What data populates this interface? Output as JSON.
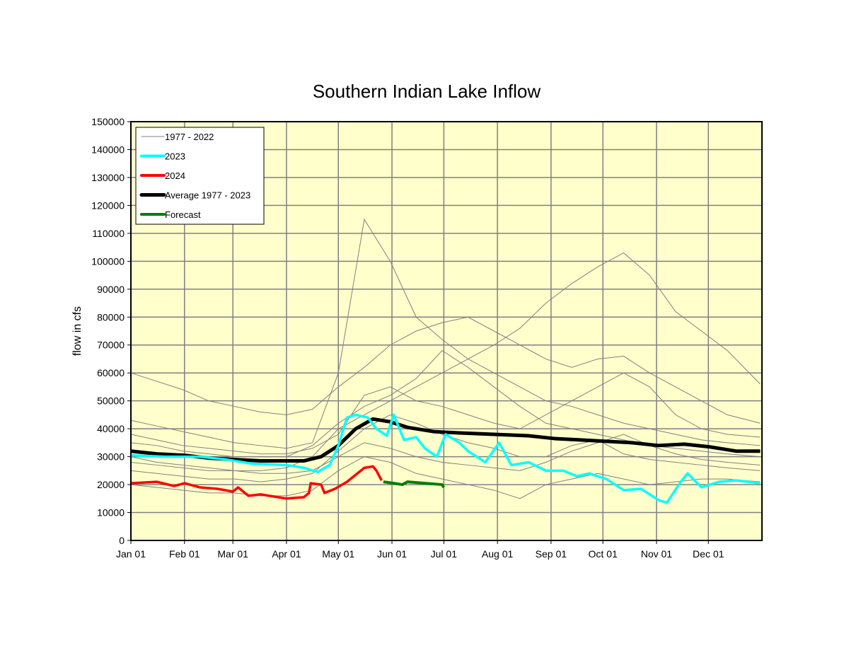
{
  "chart_data": {
    "type": "line",
    "title": "Southern Indian Lake Inflow",
    "xlabel": "",
    "ylabel": "flow in cfs",
    "ylim": [
      0,
      150000
    ],
    "yticks": [
      0,
      10000,
      20000,
      30000,
      40000,
      50000,
      60000,
      70000,
      80000,
      90000,
      100000,
      110000,
      120000,
      130000,
      140000,
      150000
    ],
    "xlim_day_of_year": [
      0,
      365
    ],
    "xticks": [
      {
        "label": "Jan 01",
        "day": 0
      },
      {
        "label": "Feb 01",
        "day": 31
      },
      {
        "label": "Mar 01",
        "day": 59
      },
      {
        "label": "Apr 01",
        "day": 90
      },
      {
        "label": "May 01",
        "day": 120
      },
      {
        "label": "Jun 01",
        "day": 151
      },
      {
        "label": "Jul 01",
        "day": 181
      },
      {
        "label": "Aug 01",
        "day": 212
      },
      {
        "label": "Sep 01",
        "day": 243
      },
      {
        "label": "Oct 01",
        "day": 273
      },
      {
        "label": "Nov 01",
        "day": 304
      },
      {
        "label": "Dec 01",
        "day": 334
      }
    ],
    "grid": true,
    "plot_background": "#FFFFCC",
    "legend_placement": "top-left",
    "legend": [
      {
        "label": "1977 - 2022",
        "color": "#808080"
      },
      {
        "label": "2023",
        "color": "#00FFFF"
      },
      {
        "label": "2024",
        "color": "#FF0000"
      },
      {
        "label": "Average 1977 - 2023",
        "color": "#000000"
      },
      {
        "label": "Forecast",
        "color": "#008000"
      }
    ],
    "historical_days": [
      0,
      15,
      30,
      45,
      60,
      75,
      90,
      105,
      120,
      135,
      150,
      165,
      180,
      195,
      210,
      225,
      240,
      255,
      270,
      285,
      300,
      315,
      330,
      345,
      364
    ],
    "historical_sample": [
      [
        43000,
        41000,
        39000,
        37000,
        35000,
        34000,
        33000,
        35000,
        60000,
        115000,
        100000,
        80000,
        72000,
        65000,
        60000,
        55000,
        50000,
        48000,
        45000,
        42000,
        40000,
        38000,
        36000,
        35000,
        34000
      ],
      [
        30000,
        28000,
        27000,
        26000,
        25000,
        25000,
        26000,
        30000,
        40000,
        45000,
        50000,
        55000,
        60000,
        65000,
        70000,
        76000,
        85000,
        92000,
        98000,
        103000,
        95000,
        82000,
        75000,
        68000,
        56000
      ],
      [
        60000,
        57000,
        54000,
        50000,
        48000,
        46000,
        45000,
        47000,
        55000,
        62000,
        70000,
        75000,
        78000,
        80000,
        75000,
        70000,
        65000,
        62000,
        65000,
        66000,
        60000,
        55000,
        50000,
        45000,
        42000
      ],
      [
        38000,
        36000,
        34000,
        33000,
        32000,
        31000,
        31000,
        33000,
        38000,
        52000,
        55000,
        50000,
        48000,
        45000,
        42000,
        40000,
        45000,
        50000,
        55000,
        60000,
        55000,
        45000,
        40000,
        38000,
        37000
      ],
      [
        28000,
        27000,
        26000,
        25000,
        25000,
        24000,
        24000,
        25000,
        30000,
        35000,
        33000,
        30000,
        28000,
        27000,
        26000,
        25000,
        28000,
        32000,
        35000,
        38000,
        34000,
        31000,
        29000,
        28000,
        27000
      ],
      [
        20000,
        19000,
        18000,
        17000,
        17000,
        16000,
        16000,
        18000,
        25000,
        30000,
        28000,
        24000,
        22000,
        20000,
        18000,
        15000,
        20000,
        22000,
        24000,
        22000,
        20000,
        21000,
        22000,
        22000,
        21000
      ],
      [
        35000,
        34000,
        32000,
        31000,
        30000,
        30000,
        30000,
        34000,
        42000,
        48000,
        52000,
        58000,
        68000,
        62000,
        55000,
        48000,
        42000,
        40000,
        38000,
        36000,
        34000,
        33000,
        32000,
        31000,
        30000
      ],
      [
        25000,
        24000,
        23000,
        22000,
        22000,
        21000,
        22000,
        24000,
        32000,
        40000,
        45000,
        42000,
        38000,
        35000,
        33000,
        30000,
        30000,
        34000,
        36000,
        31000,
        29000,
        28000,
        27000,
        26000,
        25000
      ]
    ],
    "series": [
      {
        "name": "Average 1977 - 2023",
        "color": "#000000",
        "x": [
          0,
          15,
          31,
          45,
          59,
          75,
          90,
          100,
          110,
          120,
          130,
          140,
          150,
          160,
          175,
          190,
          210,
          230,
          245,
          260,
          275,
          290,
          305,
          320,
          335,
          350,
          364
        ],
        "y": [
          32000,
          31000,
          30500,
          29500,
          29000,
          28500,
          28500,
          28500,
          30000,
          34000,
          40000,
          43500,
          42500,
          40500,
          39000,
          38500,
          38000,
          37500,
          36500,
          36000,
          35500,
          35000,
          34000,
          34500,
          33500,
          32000,
          32000
        ]
      },
      {
        "name": "2023",
        "color": "#00FFFF",
        "x": [
          0,
          20,
          40,
          55,
          70,
          90,
          100,
          108,
          115,
          120,
          125,
          130,
          137,
          142,
          148,
          152,
          158,
          165,
          170,
          177,
          182,
          190,
          195,
          205,
          213,
          220,
          230,
          240,
          250,
          258,
          265,
          275,
          285,
          295,
          305,
          310,
          318,
          322,
          330,
          340,
          350,
          364
        ],
        "y": [
          30500,
          30000,
          30000,
          29000,
          27500,
          27000,
          26000,
          24500,
          27000,
          34000,
          44000,
          45000,
          44000,
          40000,
          37500,
          45000,
          36000,
          37000,
          33000,
          30000,
          38000,
          35000,
          32000,
          28000,
          35000,
          27000,
          28000,
          25000,
          25000,
          23000,
          24000,
          22000,
          18000,
          18500,
          14500,
          13500,
          21000,
          24000,
          19000,
          21000,
          21500,
          20500
        ]
      },
      {
        "name": "2024",
        "color": "#FF0000",
        "x": [
          0,
          15,
          25,
          31,
          40,
          50,
          59,
          62,
          68,
          75,
          85,
          90,
          100,
          103,
          104,
          110,
          112,
          118,
          125,
          130,
          135,
          140,
          142,
          145
        ],
        "y": [
          20500,
          21000,
          19500,
          20500,
          19000,
          18500,
          17500,
          19000,
          16000,
          16500,
          15500,
          15000,
          15500,
          17000,
          20500,
          20000,
          17000,
          18500,
          21000,
          23500,
          26000,
          26500,
          25000,
          21500
        ]
      },
      {
        "name": "Forecast",
        "color": "#008000",
        "x": [
          146,
          152,
          157,
          160,
          170,
          180,
          181
        ],
        "y": [
          21000,
          20500,
          20000,
          21000,
          20500,
          20000,
          19000
        ]
      }
    ]
  }
}
